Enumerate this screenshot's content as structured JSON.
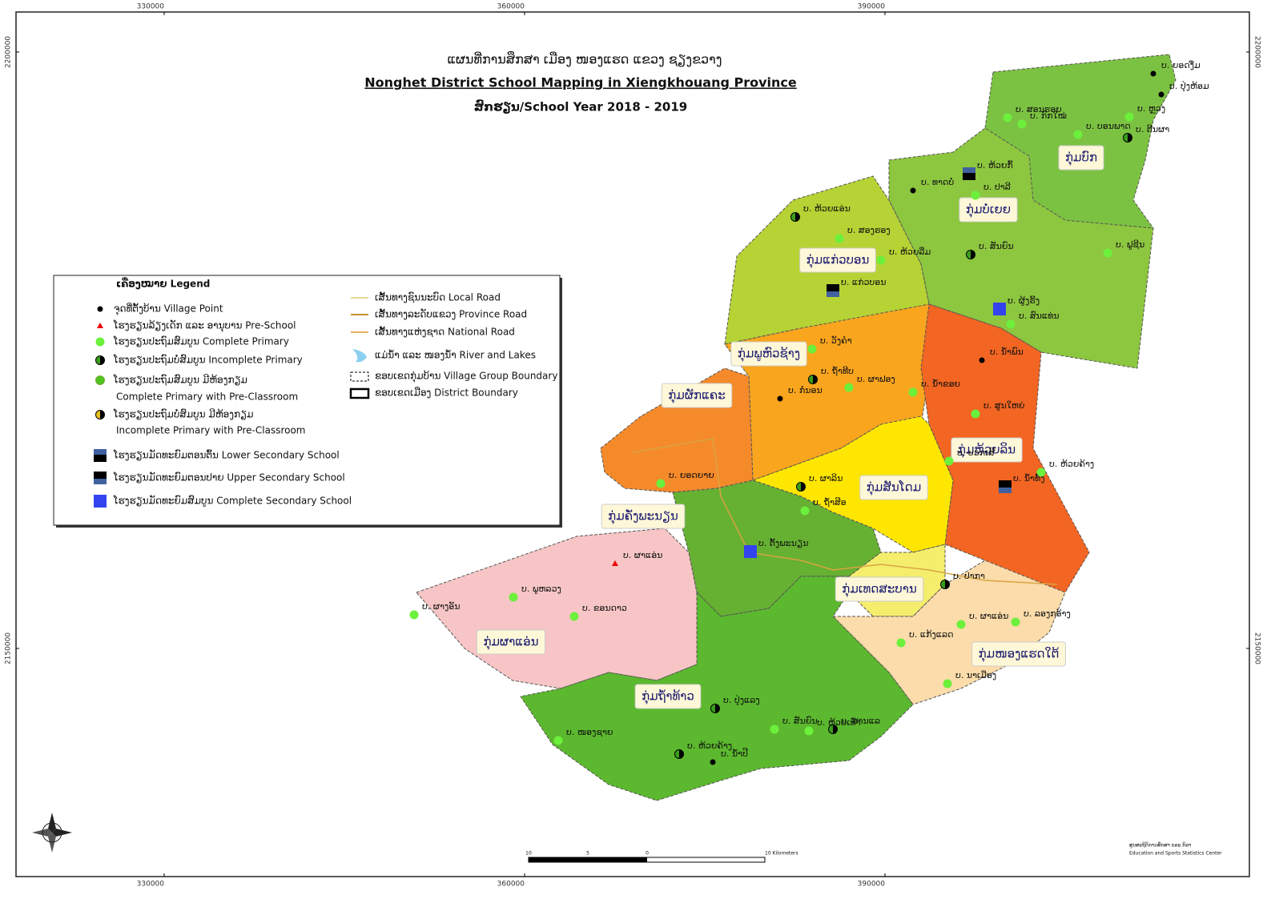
{
  "map": {
    "title_lao": "ແຜນທີ່ການສຶກສາ ເມືອງ ໜອງແຮດ ແຂວງ ຊຽງຂວາງ",
    "title_en": "Nonghet District School Mapping in Xiengkhouang Province",
    "subtitle": "ສົກຮຽນ/School  Year 2018 - 2019",
    "x_ticks": [
      330000,
      360000,
      390000
    ],
    "y_ticks": [
      2200000,
      2150000
    ],
    "legend": {
      "title": "ເຄື່ອງໝາຍ Legend",
      "points": [
        "ຈຸດທີ່ຕັ້ງບ້ານ Village Point",
        "ໂຮງຮຽນລ້ຽງເດັກ ແລະ ອານຸບານ Pre-School",
        "ໂຮງຮຽນປະຖົມສົມບູນ Complete Primary",
        "ໂຮງຮຽນປະຖົມບໍ່ສົມບູນ Incomplete  Primary",
        "ໂຮງຮຽນປະຖົມສົມບູນ ມີຫ້ອງກຽມ",
        "Complete Primary  with Pre-Classroom",
        "ໂຮງຮຽນປະຖົມບໍ່ສົມບູນ ມີຫ້ອງກຽມ",
        "Incomplete  Primary with Pre-Classroom",
        "ໂຮງຮຽນມັດທະຍົມຕອນຕົ້ນ Lower Secondary School",
        "ໂຮງຮຽນມັດທະຍົມຕອນປາຍ Upper Secondary School",
        "ໂຮງຮຽນມັດທະຍົມສົມບູນ Complete Secondary School"
      ],
      "lines": [
        "ເສັ້ນທາງຊົນນະບົດ Local Road",
        "ເສັ້ນທາງລະດັບແຂວງ Province Road",
        "ເສັ້ນທາງແຫ່ງຊາດ  National Road",
        "ແມ່ນ້ຳ ແລະ ໜອງນ້ຳ River and Lakes",
        "ຂອບເຂດກຸ່ມບ້ານ Village Group Boundary",
        "ຂອບເຂດເມືອງ District Boundary"
      ]
    },
    "groups": [
      "ກຸ່ມບົກ",
      "ກຸ່ມບໍ່ເຍຍ",
      "ກຸ່ມແກ່ວບອນ",
      "ກຸ່ມພູຫົວຊ້າງ",
      "ກຸ່ມຜັກແຄະ",
      "ກຸ່ມສັນໂດມ",
      "ກຸ່ມຫ້ວຍລິນ",
      "ກຸ່ມຄັ່ງພະນຽນ",
      "ກຸ່ມເທດສະບານ",
      "ກຸ່ມຜາແອ່ນ",
      "ກຸ່ມໜອງແຮດໃຕ້",
      "ກຸ່ມຖ້ຳທ້າວ"
    ],
    "villages": [
      "ບ. ຍອດງື່ມ",
      "ບ. ປຸ່ງຫ້ອມ",
      "ບ. ສອນຮອຍ",
      "ບ. ຫຼວງ",
      "ບ. ກົກໃໝ່",
      "ບ. ບອນພາດ",
      "ບ. ຕີນຜາ",
      "ບ. ທາດບໍ່",
      "ບ. ຫ້ວຍກົ້",
      "ບ. ປາລີ",
      "ບ. ຫ້ວຍແອ່ນ",
      "ບ. ສອງຮອງ",
      "ບ. ຫ້ວຍລືມ",
      "ບ. ສັນຍົນ",
      "ບ. ຟູຊີນ",
      "ບ. ແກ່ວບອນ",
      "ບ. ຜູ້ງຮິ້ງ",
      "ບ. ສົນແທ່ນ",
      "ບ. ວັງຄຳ",
      "ບ. ຖ້ຳທີບ",
      "ບ. ກໍ່ນອນ",
      "ບ. ຜາຟອງ",
      "ບ. ນ້ຳຂອຍ",
      "ບ. ສູນໃຫຍ່",
      "ບ. ນ້ຳພົນ",
      "ບ. ນ້ຳທັ້ງ",
      "ບ. ຍອດຍາຍ",
      "ບ. ຜາລິນ",
      "ບ. ຖ້ຳສີອ",
      "ບ. ບວກເສີ",
      "ບ. ຫ້ວຍຄ້າງ",
      "ບ. ຕັ້ງພະນຽນ",
      "ບ. ຜາແອ່ນ",
      "ບ. ພູຫລວງ",
      "ບ. ຂອນດາວ",
      "ບ. ຜາງອັນ",
      "ບ. ໜອງຊາຍ",
      "ບ. ປຸ່ງແລງ",
      "ບ. ສັນຍົນ",
      "ບ. ສານແລ",
      "ບ. ຫ້ວຍເທົາ",
      "ບ. ນ້ຳປີ",
      "ບ. ຫ້ວຍຄ້າງ",
      "ບ. ແກ້ງແລດ",
      "ບ. ນາເມືອງ",
      "ບ. ລອງກອ້າງ",
      "ບ. ຜາແອ່ນ",
      "ບ. ປາກາ"
    ],
    "scale": [
      "10",
      "5",
      "0",
      "10 Kilometers"
    ],
    "credit": [
      "ສູນສະຖິຕິການສຶກສາ ແລະ ກິລາ",
      "Education and Sports Statistics Center"
    ]
  }
}
